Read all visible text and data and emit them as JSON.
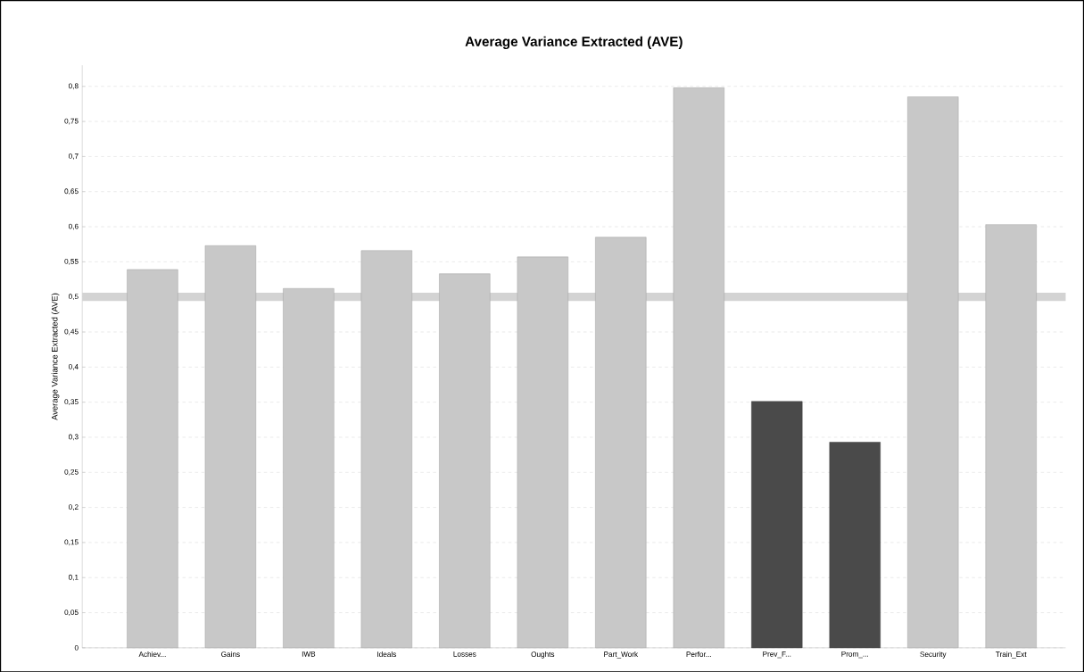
{
  "chart_data": {
    "type": "bar",
    "title": "**Average Variance Extracted (AVE)**",
    "ylabel": "Average Variance Extracted (AVE)",
    "categories": [
      "Achiev...",
      "Gains",
      "IWB",
      "Ideals",
      "Losses",
      "Oughts",
      "Part_Work",
      "Perfor...",
      "Prev_F...",
      "Prom_...",
      "Security",
      "Train_Ext"
    ],
    "values": [
      0.539,
      0.573,
      0.512,
      0.566,
      0.533,
      0.557,
      0.585,
      0.798,
      0.351,
      0.293,
      0.785,
      0.603
    ],
    "colors": [
      "#c8c8c8",
      "#c8c8c8",
      "#c8c8c8",
      "#c8c8c8",
      "#c8c8c8",
      "#c8c8c8",
      "#c8c8c8",
      "#c8c8c8",
      "#4a4a4a",
      "#4a4a4a",
      "#c8c8c8",
      "#c8c8c8"
    ],
    "ylim": [
      0,
      0.83
    ],
    "yticks": [
      {
        "value": 0,
        "label": "0"
      },
      {
        "value": 0.05,
        "label": "0,05"
      },
      {
        "value": 0.1,
        "label": "0,1"
      },
      {
        "value": 0.15,
        "label": "0,15"
      },
      {
        "value": 0.2,
        "label": "0,2"
      },
      {
        "value": 0.25,
        "label": "0,25"
      },
      {
        "value": 0.3,
        "label": "0,3"
      },
      {
        "value": 0.35,
        "label": "0,35"
      },
      {
        "value": 0.4,
        "label": "0,4"
      },
      {
        "value": 0.45,
        "label": "0,45"
      },
      {
        "value": 0.5,
        "label": "0,5"
      },
      {
        "value": 0.55,
        "label": "0,55"
      },
      {
        "value": 0.6,
        "label": "0,6"
      },
      {
        "value": 0.65,
        "label": "0,65"
      },
      {
        "value": 0.7,
        "label": "0,7"
      },
      {
        "value": 0.75,
        "label": "0,75"
      },
      {
        "value": 0.8,
        "label": "0,8"
      }
    ],
    "ref_lines": [
      {
        "axis": "y",
        "value": 0.5,
        "color": "#d3d3d3"
      }
    ],
    "grid": "y"
  }
}
